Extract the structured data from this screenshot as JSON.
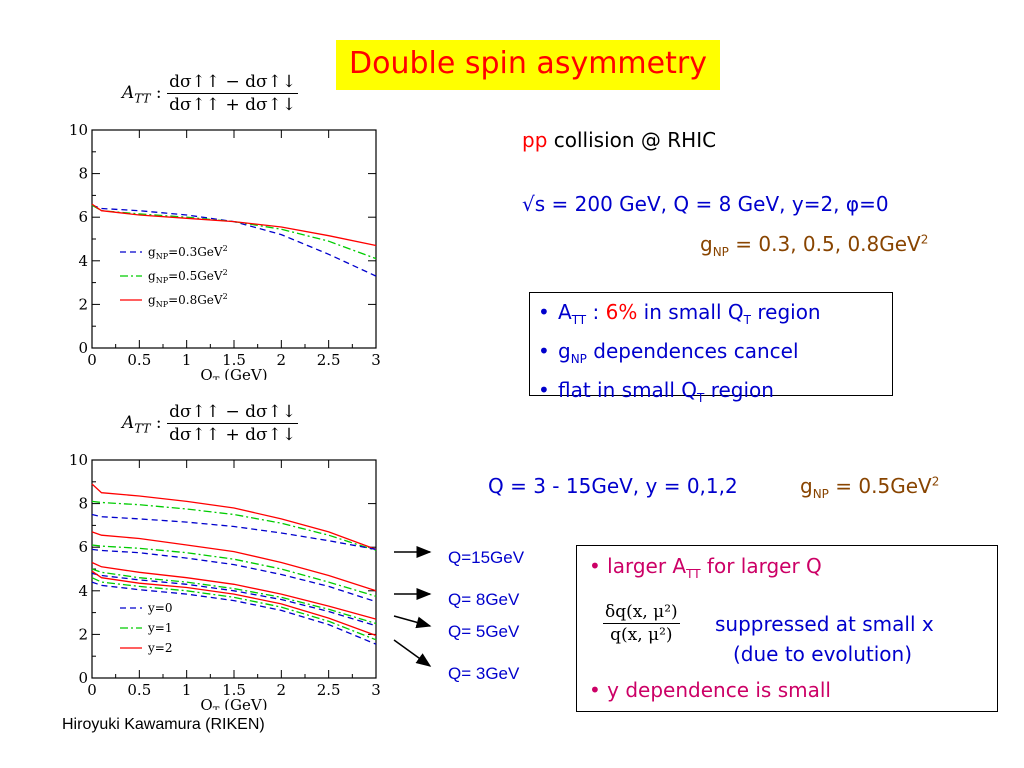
{
  "title": "Double spin asymmetry",
  "formula_label": "A",
  "formula_label_sub": "TT",
  "formula_colon": ":",
  "formula_num": "dσ↑↑ − dσ↑↓",
  "formula_den": "dσ↑↑ + dσ↑↓",
  "collision_pp": "pp",
  "collision_rest": " collision @ RHIC",
  "kinematics_line": "√s = 200 GeV,  Q = 8 GeV,  y=2, φ=0",
  "gnp_line": {
    "g": "g",
    "sub": "NP",
    "rest": " = 0.3, 0.5, 0.8GeV",
    "sup": "2"
  },
  "box1": {
    "b1": {
      "a": "A",
      "a_sub": "TT",
      "colon": " : ",
      "pct": "6%",
      "rest": " in small Q",
      "q_sub": "T",
      "end": " region"
    },
    "b2": {
      "g": "g",
      "g_sub": "NP",
      "rest": " dependences cancel"
    },
    "b3": {
      "text": "flat in small Q",
      "q_sub": "T",
      "end": " region"
    }
  },
  "range_line": "Q = 3 - 15GeV, y = 0,1,2",
  "gnp_line2": {
    "g": "g",
    "sub": "NP",
    "rest": " = 0.5GeV",
    "sup": "2"
  },
  "box2": {
    "b1": {
      "text": "larger A",
      "sub": "TT",
      "rest": " for larger Q"
    },
    "frac_num": "δq(x, μ²)",
    "frac_den": "q(x, μ²)",
    "suppressed": "suppressed at small x",
    "evolution": "(due to evolution)",
    "b3": "y dependence is small"
  },
  "q_labels": [
    "Q=15GeV",
    "Q= 8GeV",
    "Q= 5GeV",
    "Q= 3GeV"
  ],
  "bullet": "•",
  "author": "Hiroyuki Kawamura (RIKEN)",
  "colors": {
    "title_bg": "#ffff00",
    "title_text": "#ff0000",
    "blue": "#0000cc",
    "green": "#00cc00",
    "red": "#ff0000"
  },
  "chart_data": [
    {
      "type": "line",
      "xlabel": "Q",
      "xlabel_sub": "T",
      "xlabel_unit": " (GeV)",
      "xlim": [
        0,
        3
      ],
      "ylim": [
        0,
        10
      ],
      "xticks": [
        0,
        0.5,
        1,
        1.5,
        2,
        2.5,
        3
      ],
      "xtick_labels": [
        "0",
        "0.5",
        "1",
        "1.5",
        "2",
        "2.5",
        "3"
      ],
      "yticks": [
        0,
        2,
        4,
        6,
        8,
        10
      ],
      "ytick_labels": [
        "0",
        "2",
        "4",
        "6",
        "8",
        "10"
      ],
      "legend_position": "left",
      "legend": [
        {
          "prefix": "g",
          "sub": "NP",
          "rest": "=0.3GeV",
          "sup": "2",
          "color": "#0000cc",
          "dash": "dashed"
        },
        {
          "prefix": "g",
          "sub": "NP",
          "rest": "=0.5GeV",
          "sup": "2",
          "color": "#00cc00",
          "dash": "dashdot"
        },
        {
          "prefix": "g",
          "sub": "NP",
          "rest": "=0.8GeV",
          "sup": "2",
          "color": "#ff0000",
          "dash": "solid"
        }
      ],
      "series": [
        {
          "color": "#0000cc",
          "dash": "dashed",
          "x": [
            0,
            0.1,
            0.5,
            1,
            1.5,
            2,
            2.5,
            3
          ],
          "y": [
            6.55,
            6.4,
            6.3,
            6.1,
            5.8,
            5.2,
            4.3,
            3.3
          ]
        },
        {
          "color": "#00cc00",
          "dash": "dashdot",
          "x": [
            0,
            0.1,
            0.5,
            1,
            1.5,
            2,
            2.5,
            3
          ],
          "y": [
            6.55,
            6.3,
            6.15,
            6.0,
            5.8,
            5.45,
            4.9,
            4.1
          ]
        },
        {
          "color": "#ff0000",
          "dash": "solid",
          "x": [
            0,
            0.1,
            0.5,
            1,
            1.5,
            2,
            2.5,
            3
          ],
          "y": [
            6.6,
            6.3,
            6.1,
            5.95,
            5.8,
            5.55,
            5.15,
            4.7
          ]
        }
      ]
    },
    {
      "type": "line",
      "xlabel": "Q",
      "xlabel_sub": "T",
      "xlabel_unit": " (GeV)",
      "xlim": [
        0,
        3
      ],
      "ylim": [
        0,
        10
      ],
      "xticks": [
        0,
        0.5,
        1,
        1.5,
        2,
        2.5,
        3
      ],
      "xtick_labels": [
        "0",
        "0.5",
        "1",
        "1.5",
        "2",
        "2.5",
        "3"
      ],
      "yticks": [
        0,
        2,
        4,
        6,
        8,
        10
      ],
      "ytick_labels": [
        "0",
        "2",
        "4",
        "6",
        "8",
        "10"
      ],
      "legend_position": "bottom-left",
      "legend": [
        {
          "prefix": "y=0",
          "sub": "",
          "rest": "",
          "sup": "",
          "color": "#0000cc",
          "dash": "dashed"
        },
        {
          "prefix": "y=1",
          "sub": "",
          "rest": "",
          "sup": "",
          "color": "#00cc00",
          "dash": "dashdot"
        },
        {
          "prefix": "y=2",
          "sub": "",
          "rest": "",
          "sup": "",
          "color": "#ff0000",
          "dash": "solid"
        }
      ],
      "series": [
        {
          "group": "Q=15GeV",
          "color": "#ff0000",
          "dash": "solid",
          "x": [
            0,
            0.1,
            0.5,
            1,
            1.5,
            2,
            2.5,
            3
          ],
          "y": [
            8.9,
            8.5,
            8.35,
            8.1,
            7.8,
            7.3,
            6.7,
            5.9
          ]
        },
        {
          "group": "Q=15GeV",
          "color": "#00cc00",
          "dash": "dashdot",
          "x": [
            0,
            0.1,
            0.5,
            1,
            1.5,
            2,
            2.5,
            3
          ],
          "y": [
            8.1,
            8.05,
            7.95,
            7.75,
            7.5,
            7.1,
            6.55,
            5.85
          ]
        },
        {
          "group": "Q=15GeV",
          "color": "#0000cc",
          "dash": "dashed",
          "x": [
            0,
            0.1,
            0.5,
            1,
            1.5,
            2,
            2.5,
            3
          ],
          "y": [
            7.5,
            7.4,
            7.3,
            7.15,
            6.95,
            6.65,
            6.3,
            5.9
          ]
        },
        {
          "group": "Q= 8GeV",
          "color": "#ff0000",
          "dash": "solid",
          "x": [
            0,
            0.1,
            0.5,
            1,
            1.5,
            2,
            2.5,
            3
          ],
          "y": [
            6.7,
            6.55,
            6.4,
            6.1,
            5.8,
            5.3,
            4.7,
            4.0
          ]
        },
        {
          "group": "Q= 8GeV",
          "color": "#00cc00",
          "dash": "dashdot",
          "x": [
            0,
            0.1,
            0.5,
            1,
            1.5,
            2,
            2.5,
            3
          ],
          "y": [
            6.1,
            6.05,
            5.95,
            5.75,
            5.45,
            5.0,
            4.4,
            3.75
          ]
        },
        {
          "group": "Q= 8GeV",
          "color": "#0000cc",
          "dash": "dashed",
          "x": [
            0,
            0.1,
            0.5,
            1,
            1.5,
            2,
            2.5,
            3
          ],
          "y": [
            5.9,
            5.85,
            5.75,
            5.5,
            5.2,
            4.75,
            4.2,
            3.5
          ]
        },
        {
          "group": "Q= 5GeV",
          "color": "#ff0000",
          "dash": "solid",
          "x": [
            0,
            0.1,
            0.5,
            1,
            1.5,
            2,
            2.5,
            3
          ],
          "y": [
            5.3,
            5.1,
            4.85,
            4.6,
            4.3,
            3.85,
            3.3,
            2.7
          ]
        },
        {
          "group": "Q= 5GeV",
          "color": "#00cc00",
          "dash": "dashdot",
          "x": [
            0,
            0.1,
            0.5,
            1,
            1.5,
            2,
            2.5,
            3
          ],
          "y": [
            5.0,
            4.85,
            4.6,
            4.4,
            4.1,
            3.7,
            3.15,
            2.5
          ]
        },
        {
          "group": "Q= 5GeV",
          "color": "#0000cc",
          "dash": "dashed",
          "x": [
            0,
            0.1,
            0.5,
            1,
            1.5,
            2,
            2.5,
            3
          ],
          "y": [
            4.8,
            4.7,
            4.5,
            4.3,
            4.0,
            3.6,
            3.05,
            2.4
          ]
        },
        {
          "group": "Q= 3GeV",
          "color": "#ff0000",
          "dash": "solid",
          "x": [
            0,
            0.1,
            0.5,
            1,
            1.5,
            2,
            2.5,
            3
          ],
          "y": [
            4.9,
            4.6,
            4.35,
            4.15,
            3.85,
            3.4,
            2.75,
            1.95
          ]
        },
        {
          "group": "Q= 3GeV",
          "color": "#00cc00",
          "dash": "dashdot",
          "x": [
            0,
            0.1,
            0.5,
            1,
            1.5,
            2,
            2.5,
            3
          ],
          "y": [
            4.6,
            4.4,
            4.2,
            4.0,
            3.7,
            3.25,
            2.6,
            1.75
          ]
        },
        {
          "group": "Q= 3GeV",
          "color": "#0000cc",
          "dash": "dashed",
          "x": [
            0,
            0.1,
            0.5,
            1,
            1.5,
            2,
            2.5,
            3
          ],
          "y": [
            4.4,
            4.25,
            4.05,
            3.85,
            3.55,
            3.1,
            2.45,
            1.55
          ]
        }
      ]
    }
  ]
}
